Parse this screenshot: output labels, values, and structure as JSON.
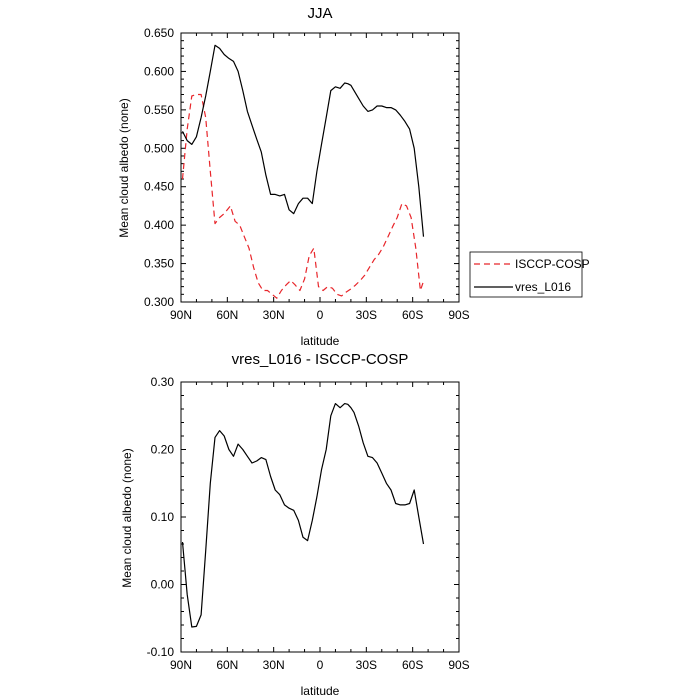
{
  "chart_data": [
    {
      "type": "line",
      "title": "JJA",
      "xlabel": "latitude",
      "ylabel": "Mean cloud albedo (none)",
      "xlim": [
        90,
        -90
      ],
      "ylim": [
        0.3,
        0.65
      ],
      "x_ticks": [
        90,
        60,
        30,
        0,
        -30,
        -60,
        -90
      ],
      "x_tick_labels": [
        "90N",
        "60N",
        "30N",
        "0",
        "30S",
        "60S",
        "90S"
      ],
      "y_ticks": [
        0.3,
        0.35,
        0.4,
        0.45,
        0.5,
        0.55,
        0.6,
        0.65
      ],
      "y_tick_labels": [
        "0.300",
        "0.350",
        "0.400",
        "0.450",
        "0.500",
        "0.550",
        "0.600",
        "0.650"
      ],
      "grid": false,
      "legend_position": "right",
      "series": [
        {
          "name": "ISCCP-COSP",
          "color": "#e8262b",
          "dash": "dashed",
          "x": [
            89,
            86,
            83,
            80,
            77,
            74,
            71,
            68,
            65,
            62,
            60,
            58,
            55,
            52,
            49,
            46,
            43,
            40,
            37,
            34,
            31,
            28,
            25,
            22,
            19,
            16,
            13,
            10,
            7,
            4,
            1,
            -2,
            -5,
            -8,
            -11,
            -14,
            -17,
            -20,
            -23,
            -26,
            -29,
            -32,
            -35,
            -38,
            -41,
            -44,
            -47,
            -50,
            -53,
            -56,
            -59,
            -62,
            -65,
            -67
          ],
          "y": [
            0.46,
            0.525,
            0.568,
            0.57,
            0.57,
            0.54,
            0.47,
            0.402,
            0.41,
            0.415,
            0.42,
            0.425,
            0.405,
            0.4,
            0.385,
            0.37,
            0.345,
            0.325,
            0.315,
            0.315,
            0.31,
            0.305,
            0.315,
            0.322,
            0.328,
            0.322,
            0.315,
            0.33,
            0.36,
            0.37,
            0.32,
            0.315,
            0.32,
            0.318,
            0.31,
            0.308,
            0.313,
            0.317,
            0.322,
            0.328,
            0.335,
            0.345,
            0.355,
            0.362,
            0.372,
            0.385,
            0.398,
            0.41,
            0.428,
            0.425,
            0.41,
            0.37,
            0.315,
            0.327
          ]
        },
        {
          "name": "vres_L016",
          "color": "#000000",
          "dash": "solid",
          "x": [
            89,
            86,
            83,
            80,
            77,
            74,
            71,
            68,
            65,
            62,
            59,
            56,
            53,
            50,
            47,
            44,
            41,
            38,
            35,
            32,
            29,
            26,
            23,
            20,
            17,
            14,
            11,
            8,
            5,
            2,
            -1,
            -4,
            -7,
            -10,
            -13,
            -16,
            -18,
            -20,
            -22,
            -25,
            -28,
            -31,
            -34,
            -37,
            -40,
            -43,
            -46,
            -49,
            -52,
            -55,
            -58,
            -61,
            -64,
            -67
          ],
          "y": [
            0.522,
            0.51,
            0.505,
            0.515,
            0.54,
            0.568,
            0.6,
            0.634,
            0.63,
            0.622,
            0.617,
            0.613,
            0.6,
            0.575,
            0.548,
            0.53,
            0.512,
            0.495,
            0.465,
            0.44,
            0.44,
            0.438,
            0.44,
            0.42,
            0.415,
            0.428,
            0.435,
            0.435,
            0.428,
            0.47,
            0.505,
            0.54,
            0.575,
            0.58,
            0.578,
            0.585,
            0.584,
            0.582,
            0.575,
            0.565,
            0.555,
            0.548,
            0.55,
            0.555,
            0.555,
            0.553,
            0.553,
            0.55,
            0.543,
            0.535,
            0.525,
            0.5,
            0.45,
            0.385
          ]
        }
      ]
    },
    {
      "type": "line",
      "title": "vres_L016 - ISCCP-COSP",
      "xlabel": "latitude",
      "ylabel": "Mean cloud albedo (none)",
      "xlim": [
        90,
        -90
      ],
      "ylim": [
        -0.1,
        0.3
      ],
      "x_ticks": [
        90,
        60,
        30,
        0,
        -30,
        -60,
        -90
      ],
      "x_tick_labels": [
        "90N",
        "60N",
        "30N",
        "0",
        "30S",
        "60S",
        "90S"
      ],
      "y_ticks": [
        -0.1,
        0.0,
        0.1,
        0.2,
        0.3
      ],
      "y_tick_labels": [
        "-0.10",
        "0.00",
        "0.10",
        "0.20",
        "0.30"
      ],
      "grid": false,
      "series": [
        {
          "color": "#000000",
          "dash": "solid",
          "x": [
            89,
            86,
            83,
            80,
            77,
            74,
            71,
            68,
            65,
            62,
            59,
            56,
            53,
            50,
            47,
            44,
            41,
            38,
            35,
            32,
            29,
            26,
            23,
            20,
            17,
            14,
            11,
            8,
            5,
            2,
            -1,
            -4,
            -7,
            -10,
            -13,
            -16,
            -18,
            -20,
            -22,
            -25,
            -28,
            -31,
            -34,
            -37,
            -40,
            -43,
            -46,
            -49,
            -52,
            -55,
            -58,
            -61,
            -64,
            -67
          ],
          "y": [
            0.063,
            -0.015,
            -0.063,
            -0.062,
            -0.045,
            0.05,
            0.15,
            0.218,
            0.228,
            0.22,
            0.2,
            0.19,
            0.208,
            0.2,
            0.19,
            0.18,
            0.183,
            0.188,
            0.185,
            0.16,
            0.14,
            0.133,
            0.118,
            0.113,
            0.11,
            0.095,
            0.07,
            0.065,
            0.095,
            0.13,
            0.17,
            0.2,
            0.25,
            0.268,
            0.262,
            0.268,
            0.267,
            0.262,
            0.255,
            0.235,
            0.21,
            0.19,
            0.188,
            0.18,
            0.165,
            0.15,
            0.14,
            0.12,
            0.118,
            0.118,
            0.12,
            0.14,
            0.1,
            0.06
          ]
        }
      ]
    }
  ]
}
